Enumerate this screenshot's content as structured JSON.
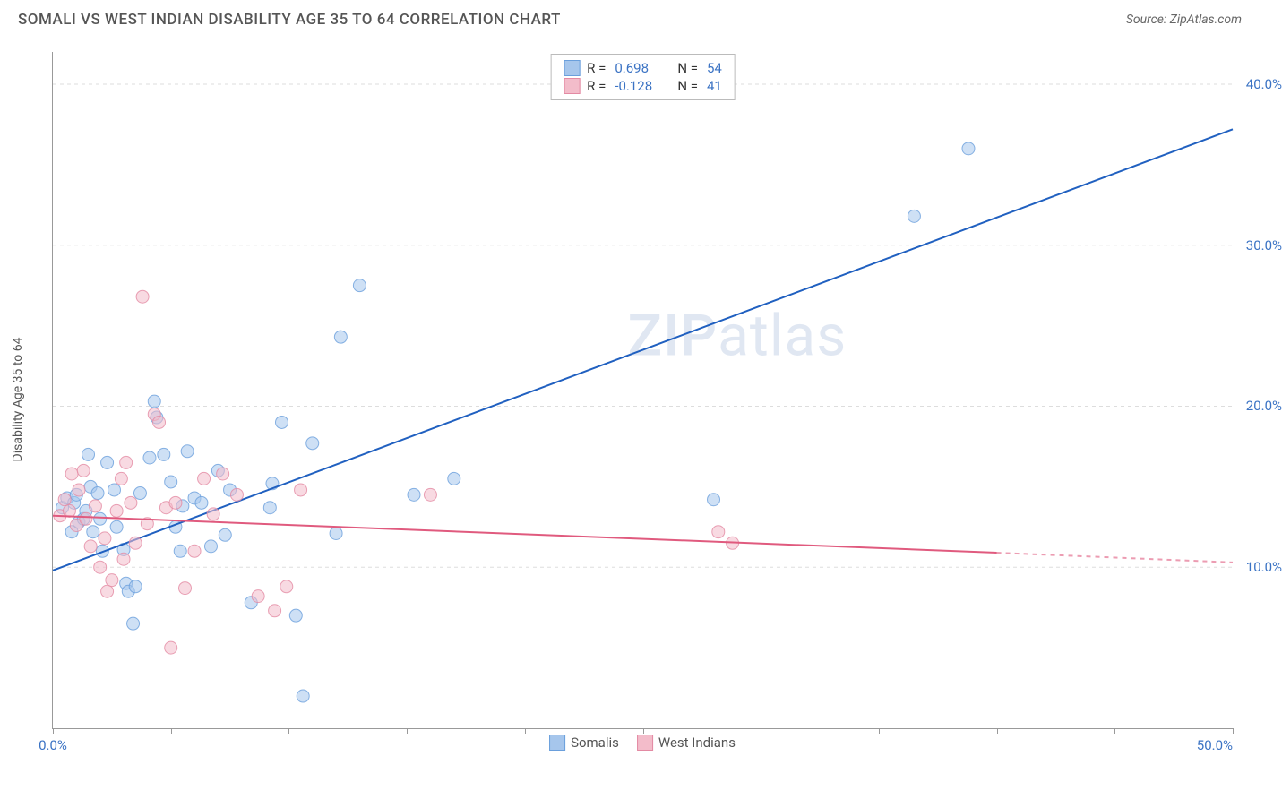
{
  "title": "SOMALI VS WEST INDIAN DISABILITY AGE 35 TO 64 CORRELATION CHART",
  "source": "Source: ZipAtlas.com",
  "y_axis_label": "Disability Age 35 to 64",
  "watermark_a": "ZIP",
  "watermark_b": "atlas",
  "chart": {
    "type": "scatter",
    "xlim": [
      0,
      50
    ],
    "ylim": [
      0,
      42
    ],
    "x_ticks": [
      0,
      5,
      10,
      15,
      20,
      25,
      30,
      35,
      40,
      45,
      50
    ],
    "x_tick_labels_shown": {
      "0": "0.0%",
      "50": "50.0%"
    },
    "y_ticks": [
      10,
      20,
      30,
      40
    ],
    "y_tick_labels": {
      "10": "10.0%",
      "20": "20.0%",
      "30": "30.0%",
      "40": "40.0%"
    },
    "background_color": "#ffffff",
    "grid_color": "#dddddd",
    "axis_color": "#999999",
    "marker_radius": 7,
    "marker_opacity": 0.55,
    "series": [
      {
        "name": "Somalis",
        "label": "Somalis",
        "fill_color": "#a6c6ec",
        "stroke_color": "#6a9fdc",
        "line_color": "#2060c0",
        "line_width": 2,
        "R": "0.698",
        "N": "54",
        "trend_start": [
          0,
          9.8
        ],
        "trend_end": [
          50,
          37.2
        ],
        "points": [
          [
            0.4,
            13.7
          ],
          [
            0.6,
            14.3
          ],
          [
            0.8,
            12.2
          ],
          [
            0.9,
            14.0
          ],
          [
            1.0,
            14.5
          ],
          [
            1.1,
            12.8
          ],
          [
            1.3,
            13.0
          ],
          [
            1.4,
            13.5
          ],
          [
            1.5,
            17.0
          ],
          [
            1.6,
            15.0
          ],
          [
            1.7,
            12.2
          ],
          [
            1.9,
            14.6
          ],
          [
            2.0,
            13.0
          ],
          [
            2.1,
            11.0
          ],
          [
            2.3,
            16.5
          ],
          [
            2.6,
            14.8
          ],
          [
            2.7,
            12.5
          ],
          [
            3.0,
            11.1
          ],
          [
            3.1,
            9.0
          ],
          [
            3.2,
            8.5
          ],
          [
            3.4,
            6.5
          ],
          [
            3.5,
            8.8
          ],
          [
            3.7,
            14.6
          ],
          [
            4.1,
            16.8
          ],
          [
            4.3,
            20.3
          ],
          [
            4.4,
            19.3
          ],
          [
            4.7,
            17.0
          ],
          [
            5.0,
            15.3
          ],
          [
            5.2,
            12.5
          ],
          [
            5.4,
            11.0
          ],
          [
            5.5,
            13.8
          ],
          [
            5.7,
            17.2
          ],
          [
            6.0,
            14.3
          ],
          [
            6.3,
            14.0
          ],
          [
            6.7,
            11.3
          ],
          [
            7.0,
            16.0
          ],
          [
            7.3,
            12.0
          ],
          [
            7.5,
            14.8
          ],
          [
            8.4,
            7.8
          ],
          [
            9.2,
            13.7
          ],
          [
            9.3,
            15.2
          ],
          [
            9.7,
            19.0
          ],
          [
            10.3,
            7.0
          ],
          [
            10.6,
            2.0
          ],
          [
            11.0,
            17.7
          ],
          [
            12.0,
            12.1
          ],
          [
            12.2,
            24.3
          ],
          [
            13.0,
            27.5
          ],
          [
            15.3,
            14.5
          ],
          [
            17.0,
            15.5
          ],
          [
            28.0,
            14.2
          ],
          [
            36.5,
            31.8
          ],
          [
            38.8,
            36.0
          ]
        ]
      },
      {
        "name": "West Indians",
        "label": "West Indians",
        "fill_color": "#f3bcca",
        "stroke_color": "#e38aa3",
        "line_color": "#e05a7e",
        "line_width": 2,
        "R": "-0.128",
        "N": "41",
        "trend_start": [
          0,
          13.2
        ],
        "trend_end": [
          40,
          10.9
        ],
        "trend_dashed_end": [
          50,
          10.3
        ],
        "points": [
          [
            0.3,
            13.2
          ],
          [
            0.5,
            14.2
          ],
          [
            0.7,
            13.5
          ],
          [
            0.8,
            15.8
          ],
          [
            1.0,
            12.6
          ],
          [
            1.1,
            14.8
          ],
          [
            1.3,
            16.0
          ],
          [
            1.4,
            13.0
          ],
          [
            1.6,
            11.3
          ],
          [
            1.8,
            13.8
          ],
          [
            2.0,
            10.0
          ],
          [
            2.2,
            11.8
          ],
          [
            2.3,
            8.5
          ],
          [
            2.5,
            9.2
          ],
          [
            2.7,
            13.5
          ],
          [
            2.9,
            15.5
          ],
          [
            3.0,
            10.5
          ],
          [
            3.1,
            16.5
          ],
          [
            3.3,
            14.0
          ],
          [
            3.5,
            11.5
          ],
          [
            3.8,
            26.8
          ],
          [
            4.0,
            12.7
          ],
          [
            4.3,
            19.5
          ],
          [
            4.5,
            19.0
          ],
          [
            4.8,
            13.7
          ],
          [
            5.0,
            5.0
          ],
          [
            5.2,
            14.0
          ],
          [
            5.6,
            8.7
          ],
          [
            6.0,
            11.0
          ],
          [
            6.4,
            15.5
          ],
          [
            6.8,
            13.3
          ],
          [
            7.2,
            15.8
          ],
          [
            7.8,
            14.5
          ],
          [
            8.7,
            8.2
          ],
          [
            9.4,
            7.3
          ],
          [
            9.9,
            8.8
          ],
          [
            10.5,
            14.8
          ],
          [
            16.0,
            14.5
          ],
          [
            28.2,
            12.2
          ],
          [
            28.8,
            11.5
          ]
        ]
      }
    ]
  },
  "legend_top_label_R": "R =",
  "legend_top_label_N": "N ="
}
